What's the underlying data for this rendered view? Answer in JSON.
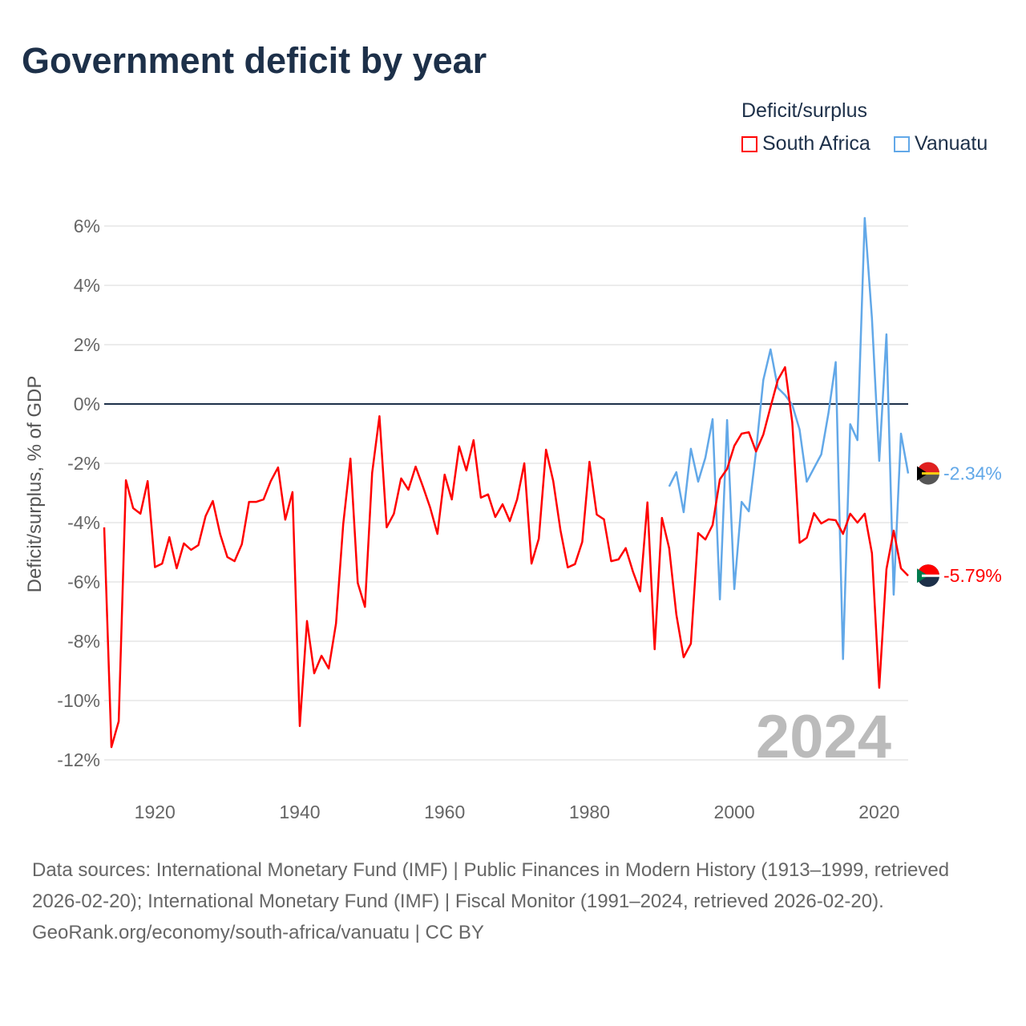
{
  "title": "Government deficit by year",
  "legend": {
    "title": "Deficit/surplus",
    "items": [
      {
        "label": "South Africa",
        "color": "#ff0000"
      },
      {
        "label": "Vanuatu",
        "color": "#62a8e8"
      }
    ]
  },
  "year_label": "2024",
  "footer": {
    "sources": "Data sources: International Monetary Fund (IMF) | Public Finances in Modern History (1913–1999, retrieved 2026-02-20); International Monetary Fund (IMF) | Fiscal Monitor (1991–2024, retrieved 2026-02-20).",
    "link": "GeoRank.org/economy/south-africa/vanuatu | CC BY"
  },
  "chart_data": {
    "type": "line",
    "title": "Government deficit by year",
    "xlabel": "",
    "ylabel": "Deficit/surplus, % of GDP",
    "xlim": [
      1913,
      2024
    ],
    "ylim": [
      -12,
      6
    ],
    "xticks": [
      1920,
      1940,
      1960,
      1980,
      2000,
      2020
    ],
    "xtick_labels": [
      "1920",
      "1940",
      "1960",
      "1980",
      "2000",
      "2020"
    ],
    "yticks": [
      6,
      4,
      2,
      0,
      -2,
      -4,
      -6,
      -8,
      -10,
      -12
    ],
    "ytick_labels": [
      "6%",
      "4%",
      "2%",
      "0%",
      "-2%",
      "-4%",
      "-6%",
      "-8%",
      "-10%",
      "-12%"
    ],
    "grid": true,
    "legend_position": "top-right",
    "series": [
      {
        "name": "South Africa",
        "color": "#ff0000",
        "start_year": 1913,
        "end_label": "-5.79%",
        "values": [
          -4.16,
          -11.57,
          -10.7,
          -2.57,
          -3.51,
          -3.7,
          -2.6,
          -5.5,
          -5.38,
          -4.49,
          -5.54,
          -4.7,
          -4.92,
          -4.76,
          -3.78,
          -3.27,
          -4.38,
          -5.16,
          -5.3,
          -4.73,
          -3.3,
          -3.3,
          -3.22,
          -2.6,
          -2.14,
          -3.9,
          -2.97,
          -10.86,
          -7.32,
          -9.08,
          -8.49,
          -8.92,
          -7.4,
          -4.05,
          -1.84,
          -6.03,
          -6.84,
          -2.32,
          -0.41,
          -4.16,
          -3.7,
          -2.51,
          -2.89,
          -2.11,
          -2.78,
          -3.49,
          -4.38,
          -2.38,
          -3.22,
          -1.43,
          -2.24,
          -1.22,
          -3.16,
          -3.05,
          -3.81,
          -3.38,
          -3.95,
          -3.22,
          -2.0,
          -5.38,
          -4.54,
          -1.54,
          -2.6,
          -4.27,
          -5.51,
          -5.4,
          -4.65,
          -1.95,
          -3.73,
          -3.89,
          -5.3,
          -5.24,
          -4.86,
          -5.65,
          -6.32,
          -3.32,
          -8.27,
          -3.84,
          -4.86,
          -7.1,
          -8.54,
          -8.08,
          -4.35,
          -4.57,
          -4.08,
          -2.54,
          -2.19,
          -1.41,
          -1.0,
          -0.95,
          -1.6,
          -1.03,
          -0.1,
          0.81,
          1.24,
          -0.62,
          -4.68,
          -4.51,
          -3.68,
          -4.03,
          -3.89,
          -3.92,
          -4.38,
          -3.7,
          -4.0,
          -3.7,
          -5.03,
          -9.57,
          -5.57,
          -4.27,
          -5.54,
          -5.79
        ]
      },
      {
        "name": "Vanuatu",
        "color": "#62a8e8",
        "start_year": 1991,
        "end_label": "-2.34%",
        "values": [
          -2.78,
          -2.3,
          -3.65,
          -1.51,
          -2.62,
          -1.81,
          -0.51,
          -6.59,
          -0.54,
          -6.24,
          -3.3,
          -3.62,
          -1.6,
          0.81,
          1.84,
          0.54,
          0.3,
          -0.03,
          -0.86,
          -2.62,
          -2.16,
          -1.7,
          -0.3,
          1.41,
          -8.6,
          -0.68,
          -1.22,
          6.27,
          2.89,
          -1.92,
          2.35,
          -6.43,
          -1.0,
          -2.34
        ]
      }
    ]
  }
}
